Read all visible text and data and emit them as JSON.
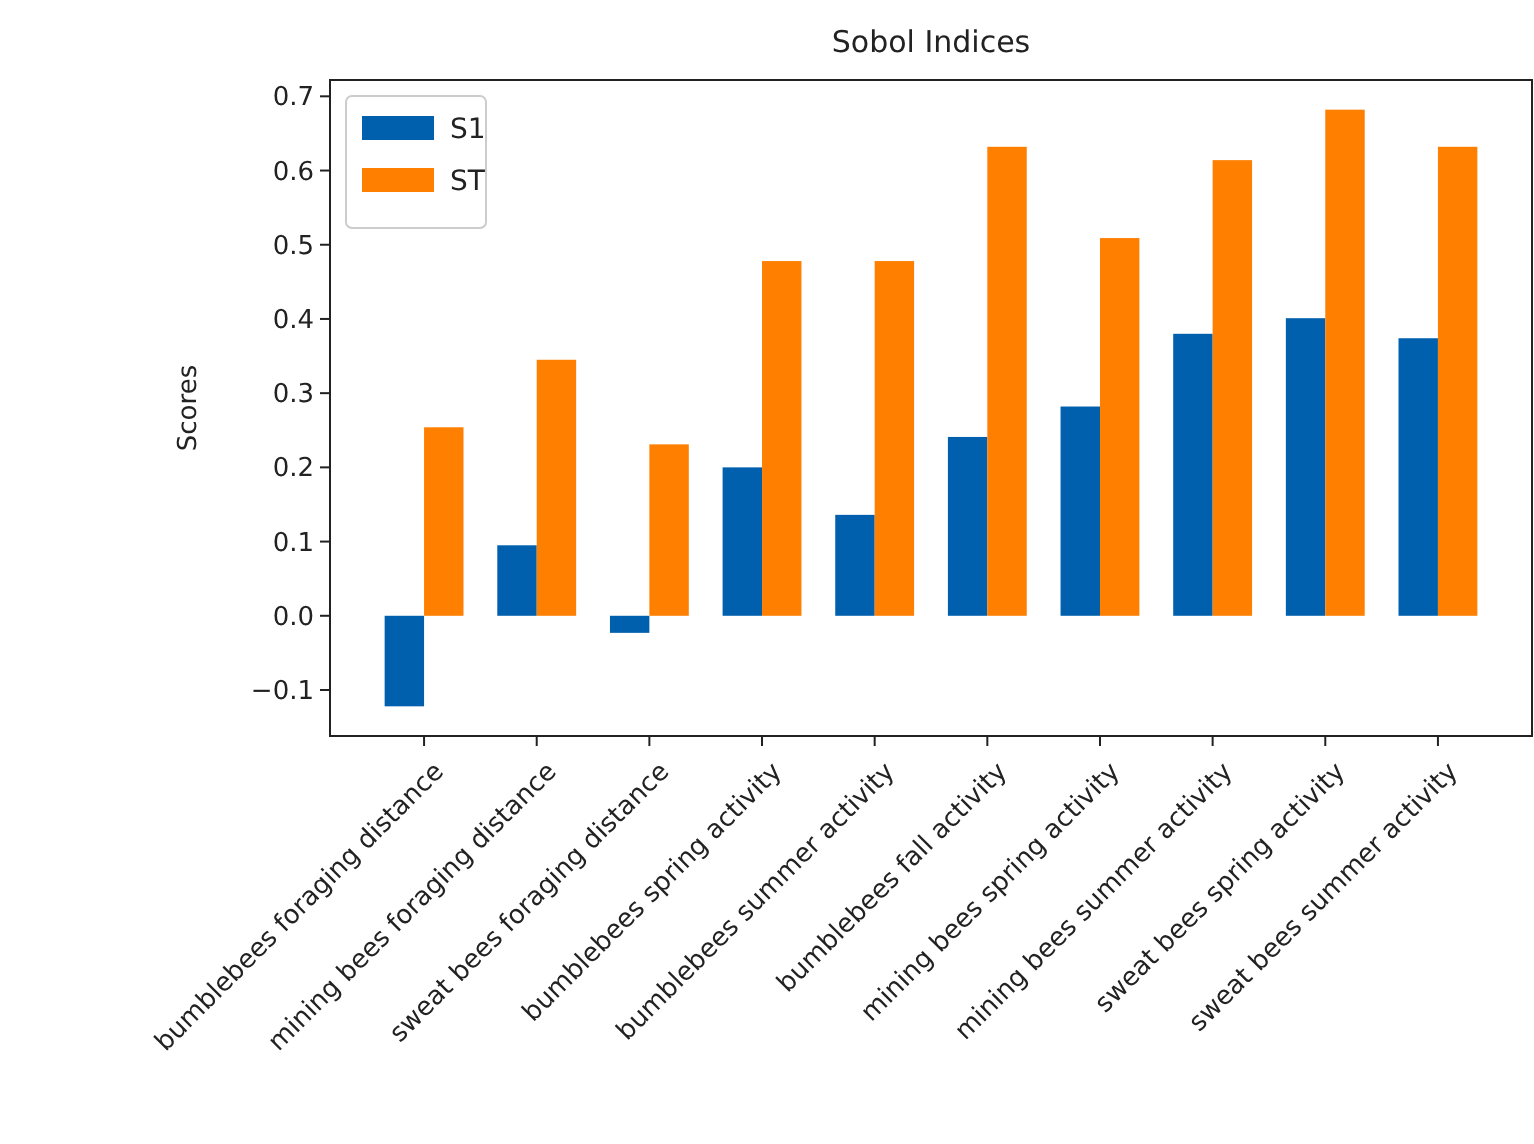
{
  "chart_data": {
    "type": "bar",
    "title": "Sobol Indices",
    "ylabel": "Scores",
    "categories": [
      "bumblebees foraging distance",
      "mining bees foraging distance",
      "sweat bees foraging distance",
      "bumblebees spring activity",
      "bumblebees summer activity",
      "bumblebees fall activity",
      "mining bees spring activity",
      "mining bees summer activity",
      "sweat bees spring activity",
      "sweat bees summer activity"
    ],
    "series": [
      {
        "name": "S1",
        "color": "#0060ad",
        "values": [
          -0.122,
          0.095,
          -0.023,
          0.2,
          0.136,
          0.241,
          0.282,
          0.38,
          0.401,
          0.374
        ]
      },
      {
        "name": "ST",
        "color": "#ff7f00",
        "values": [
          0.254,
          0.345,
          0.231,
          0.478,
          0.478,
          0.632,
          0.509,
          0.614,
          0.682,
          0.632
        ]
      }
    ],
    "ylim": [
      -0.162,
      0.722
    ],
    "yticks": [
      {
        "value": -0.1,
        "label": "−0.1"
      },
      {
        "value": 0,
        "label": "0.0"
      },
      {
        "value": 0.1,
        "label": "0.1"
      },
      {
        "value": 0.2,
        "label": "0.2"
      },
      {
        "value": 0.3,
        "label": "0.3"
      },
      {
        "value": 0.4,
        "label": "0.4"
      },
      {
        "value": 0.5,
        "label": "0.5"
      },
      {
        "value": 0.6,
        "label": "0.6"
      },
      {
        "value": 0.7,
        "label": "0.7"
      }
    ],
    "legend": "top left"
  }
}
